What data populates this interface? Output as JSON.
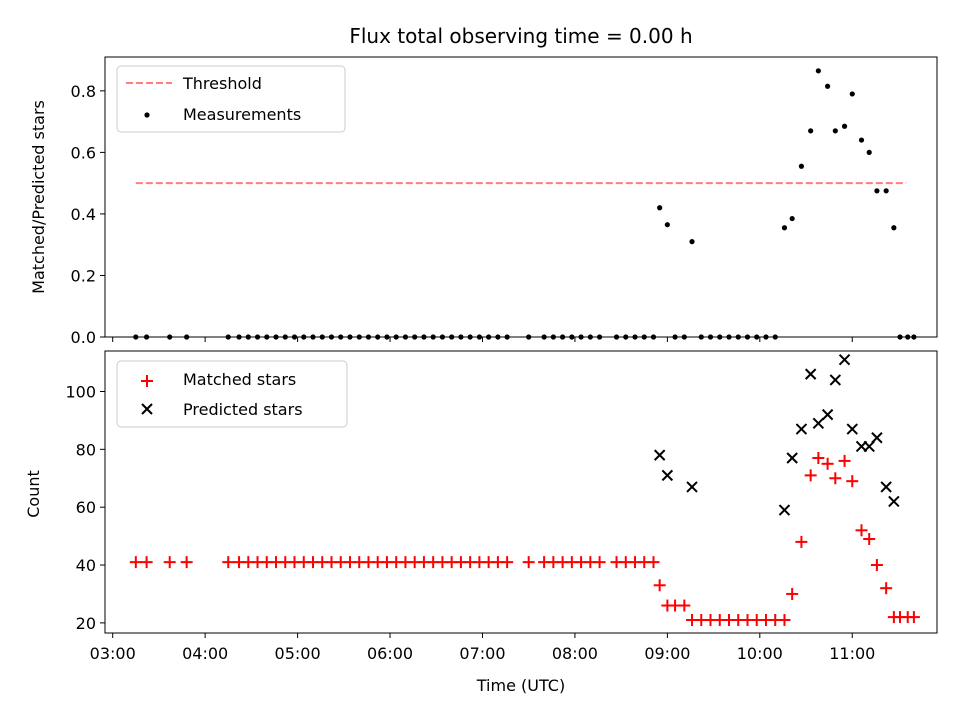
{
  "figure": {
    "title": "Flux total observing time = 0.00 h",
    "xlabel": "Time (UTC)"
  },
  "chart_data": [
    {
      "type": "scatter",
      "panel": "top",
      "ylabel": "Matched/Predicted stars",
      "ylim": [
        0,
        0.91
      ],
      "yticks": [
        0.0,
        0.2,
        0.4,
        0.6,
        0.8
      ],
      "ytick_labels": [
        "0.0",
        "0.2",
        "0.4",
        "0.6",
        "0.8"
      ],
      "legend": {
        "placement": "top-left",
        "entries": [
          "Threshold",
          "Measurements"
        ]
      },
      "threshold": {
        "name": "Threshold",
        "value": 0.5,
        "x_range": [
          "03:15",
          "11:35"
        ],
        "color": "#ff7f7f"
      },
      "series": [
        {
          "name": "Measurements",
          "color": "#000000",
          "points": [
            [
              "03:15",
              0
            ],
            [
              "03:22",
              0
            ],
            [
              "03:37",
              0
            ],
            [
              "03:48",
              0
            ],
            [
              "04:15",
              0
            ],
            [
              "04:22",
              0
            ],
            [
              "04:28",
              0
            ],
            [
              "04:34",
              0
            ],
            [
              "04:40",
              0
            ],
            [
              "04:46",
              0
            ],
            [
              "04:52",
              0
            ],
            [
              "04:58",
              0
            ],
            [
              "05:04",
              0
            ],
            [
              "05:10",
              0
            ],
            [
              "05:16",
              0
            ],
            [
              "05:22",
              0
            ],
            [
              "05:28",
              0
            ],
            [
              "05:34",
              0
            ],
            [
              "05:40",
              0
            ],
            [
              "05:46",
              0
            ],
            [
              "05:52",
              0
            ],
            [
              "05:58",
              0
            ],
            [
              "06:04",
              0
            ],
            [
              "06:10",
              0
            ],
            [
              "06:16",
              0
            ],
            [
              "06:22",
              0
            ],
            [
              "06:28",
              0
            ],
            [
              "06:34",
              0
            ],
            [
              "06:40",
              0
            ],
            [
              "06:46",
              0
            ],
            [
              "06:52",
              0
            ],
            [
              "06:58",
              0
            ],
            [
              "07:04",
              0
            ],
            [
              "07:10",
              0
            ],
            [
              "07:16",
              0
            ],
            [
              "07:30",
              0
            ],
            [
              "07:40",
              0
            ],
            [
              "07:46",
              0
            ],
            [
              "07:52",
              0
            ],
            [
              "07:58",
              0
            ],
            [
              "08:04",
              0
            ],
            [
              "08:10",
              0
            ],
            [
              "08:16",
              0
            ],
            [
              "08:27",
              0
            ],
            [
              "08:33",
              0
            ],
            [
              "08:39",
              0
            ],
            [
              "08:45",
              0
            ],
            [
              "08:51",
              0
            ],
            [
              "08:55",
              0.42
            ],
            [
              "09:00",
              0.365
            ],
            [
              "09:05",
              0
            ],
            [
              "09:11",
              0
            ],
            [
              "09:16",
              0.31
            ],
            [
              "09:22",
              0
            ],
            [
              "09:28",
              0
            ],
            [
              "09:34",
              0
            ],
            [
              "09:40",
              0
            ],
            [
              "09:46",
              0
            ],
            [
              "09:52",
              0
            ],
            [
              "09:58",
              0
            ],
            [
              "10:04",
              0
            ],
            [
              "10:10",
              0
            ],
            [
              "10:16",
              0.355
            ],
            [
              "10:21",
              0.385
            ],
            [
              "10:27",
              0.555
            ],
            [
              "10:33",
              0.67
            ],
            [
              "10:38",
              0.865
            ],
            [
              "10:44",
              0.815
            ],
            [
              "10:49",
              0.67
            ],
            [
              "10:55",
              0.685
            ],
            [
              "11:00",
              0.79
            ],
            [
              "11:06",
              0.64
            ],
            [
              "11:11",
              0.6
            ],
            [
              "11:16",
              0.475
            ],
            [
              "11:22",
              0.475
            ],
            [
              "11:27",
              0.355
            ],
            [
              "11:31",
              0
            ],
            [
              "11:36",
              0
            ],
            [
              "11:40",
              0
            ]
          ]
        }
      ]
    },
    {
      "type": "scatter",
      "panel": "bottom",
      "ylabel": "Count",
      "ylim": [
        16.5,
        114
      ],
      "yticks": [
        20,
        40,
        60,
        80,
        100
      ],
      "ytick_labels": [
        "20",
        "40",
        "60",
        "80",
        "100"
      ],
      "xlim": [
        "02:55",
        "11:55"
      ],
      "xticks": [
        "03:00",
        "04:00",
        "05:00",
        "06:00",
        "07:00",
        "08:00",
        "09:00",
        "10:00",
        "11:00"
      ],
      "xtick_labels": [
        "03:00",
        "04:00",
        "05:00",
        "06:00",
        "07:00",
        "08:00",
        "09:00",
        "10:00",
        "11:00"
      ],
      "legend": {
        "placement": "top-left",
        "entries": [
          "Matched stars",
          "Predicted stars"
        ]
      },
      "series": [
        {
          "name": "Matched stars",
          "marker": "plus",
          "color": "#ff0000",
          "points": [
            [
              "03:15",
              41
            ],
            [
              "03:22",
              41
            ],
            [
              "03:37",
              41
            ],
            [
              "03:48",
              41
            ],
            [
              "04:15",
              41
            ],
            [
              "04:22",
              41
            ],
            [
              "04:28",
              41
            ],
            [
              "04:34",
              41
            ],
            [
              "04:40",
              41
            ],
            [
              "04:46",
              41
            ],
            [
              "04:52",
              41
            ],
            [
              "04:58",
              41
            ],
            [
              "05:04",
              41
            ],
            [
              "05:10",
              41
            ],
            [
              "05:16",
              41
            ],
            [
              "05:22",
              41
            ],
            [
              "05:28",
              41
            ],
            [
              "05:34",
              41
            ],
            [
              "05:40",
              41
            ],
            [
              "05:46",
              41
            ],
            [
              "05:52",
              41
            ],
            [
              "05:58",
              41
            ],
            [
              "06:04",
              41
            ],
            [
              "06:10",
              41
            ],
            [
              "06:16",
              41
            ],
            [
              "06:22",
              41
            ],
            [
              "06:28",
              41
            ],
            [
              "06:34",
              41
            ],
            [
              "06:40",
              41
            ],
            [
              "06:46",
              41
            ],
            [
              "06:52",
              41
            ],
            [
              "06:58",
              41
            ],
            [
              "07:04",
              41
            ],
            [
              "07:10",
              41
            ],
            [
              "07:16",
              41
            ],
            [
              "07:30",
              41
            ],
            [
              "07:40",
              41
            ],
            [
              "07:46",
              41
            ],
            [
              "07:52",
              41
            ],
            [
              "07:58",
              41
            ],
            [
              "08:04",
              41
            ],
            [
              "08:10",
              41
            ],
            [
              "08:16",
              41
            ],
            [
              "08:27",
              41
            ],
            [
              "08:33",
              41
            ],
            [
              "08:39",
              41
            ],
            [
              "08:45",
              41
            ],
            [
              "08:51",
              41
            ],
            [
              "08:55",
              33
            ],
            [
              "09:00",
              26
            ],
            [
              "09:05",
              26
            ],
            [
              "09:11",
              26
            ],
            [
              "09:16",
              21
            ],
            [
              "09:22",
              21
            ],
            [
              "09:28",
              21
            ],
            [
              "09:34",
              21
            ],
            [
              "09:40",
              21
            ],
            [
              "09:46",
              21
            ],
            [
              "09:52",
              21
            ],
            [
              "09:58",
              21
            ],
            [
              "10:04",
              21
            ],
            [
              "10:10",
              21
            ],
            [
              "10:16",
              21
            ],
            [
              "10:21",
              30
            ],
            [
              "10:27",
              48
            ],
            [
              "10:33",
              71
            ],
            [
              "10:38",
              77
            ],
            [
              "10:44",
              75
            ],
            [
              "10:49",
              70
            ],
            [
              "10:55",
              76
            ],
            [
              "11:00",
              69
            ],
            [
              "11:06",
              52
            ],
            [
              "11:11",
              49
            ],
            [
              "11:16",
              40
            ],
            [
              "11:22",
              32
            ],
            [
              "11:27",
              22
            ],
            [
              "11:31",
              22
            ],
            [
              "11:36",
              22
            ],
            [
              "11:40",
              22
            ]
          ]
        },
        {
          "name": "Predicted stars",
          "marker": "x",
          "color": "#000000",
          "points": [
            [
              "08:55",
              78
            ],
            [
              "09:00",
              71
            ],
            [
              "09:16",
              67
            ],
            [
              "10:16",
              59
            ],
            [
              "10:21",
              77
            ],
            [
              "10:27",
              87
            ],
            [
              "10:33",
              106
            ],
            [
              "10:38",
              89
            ],
            [
              "10:44",
              92
            ],
            [
              "10:49",
              104
            ],
            [
              "10:55",
              111
            ],
            [
              "11:00",
              87
            ],
            [
              "11:06",
              81
            ],
            [
              "11:11",
              81
            ],
            [
              "11:16",
              84
            ],
            [
              "11:22",
              67
            ],
            [
              "11:27",
              62
            ]
          ]
        }
      ]
    }
  ]
}
